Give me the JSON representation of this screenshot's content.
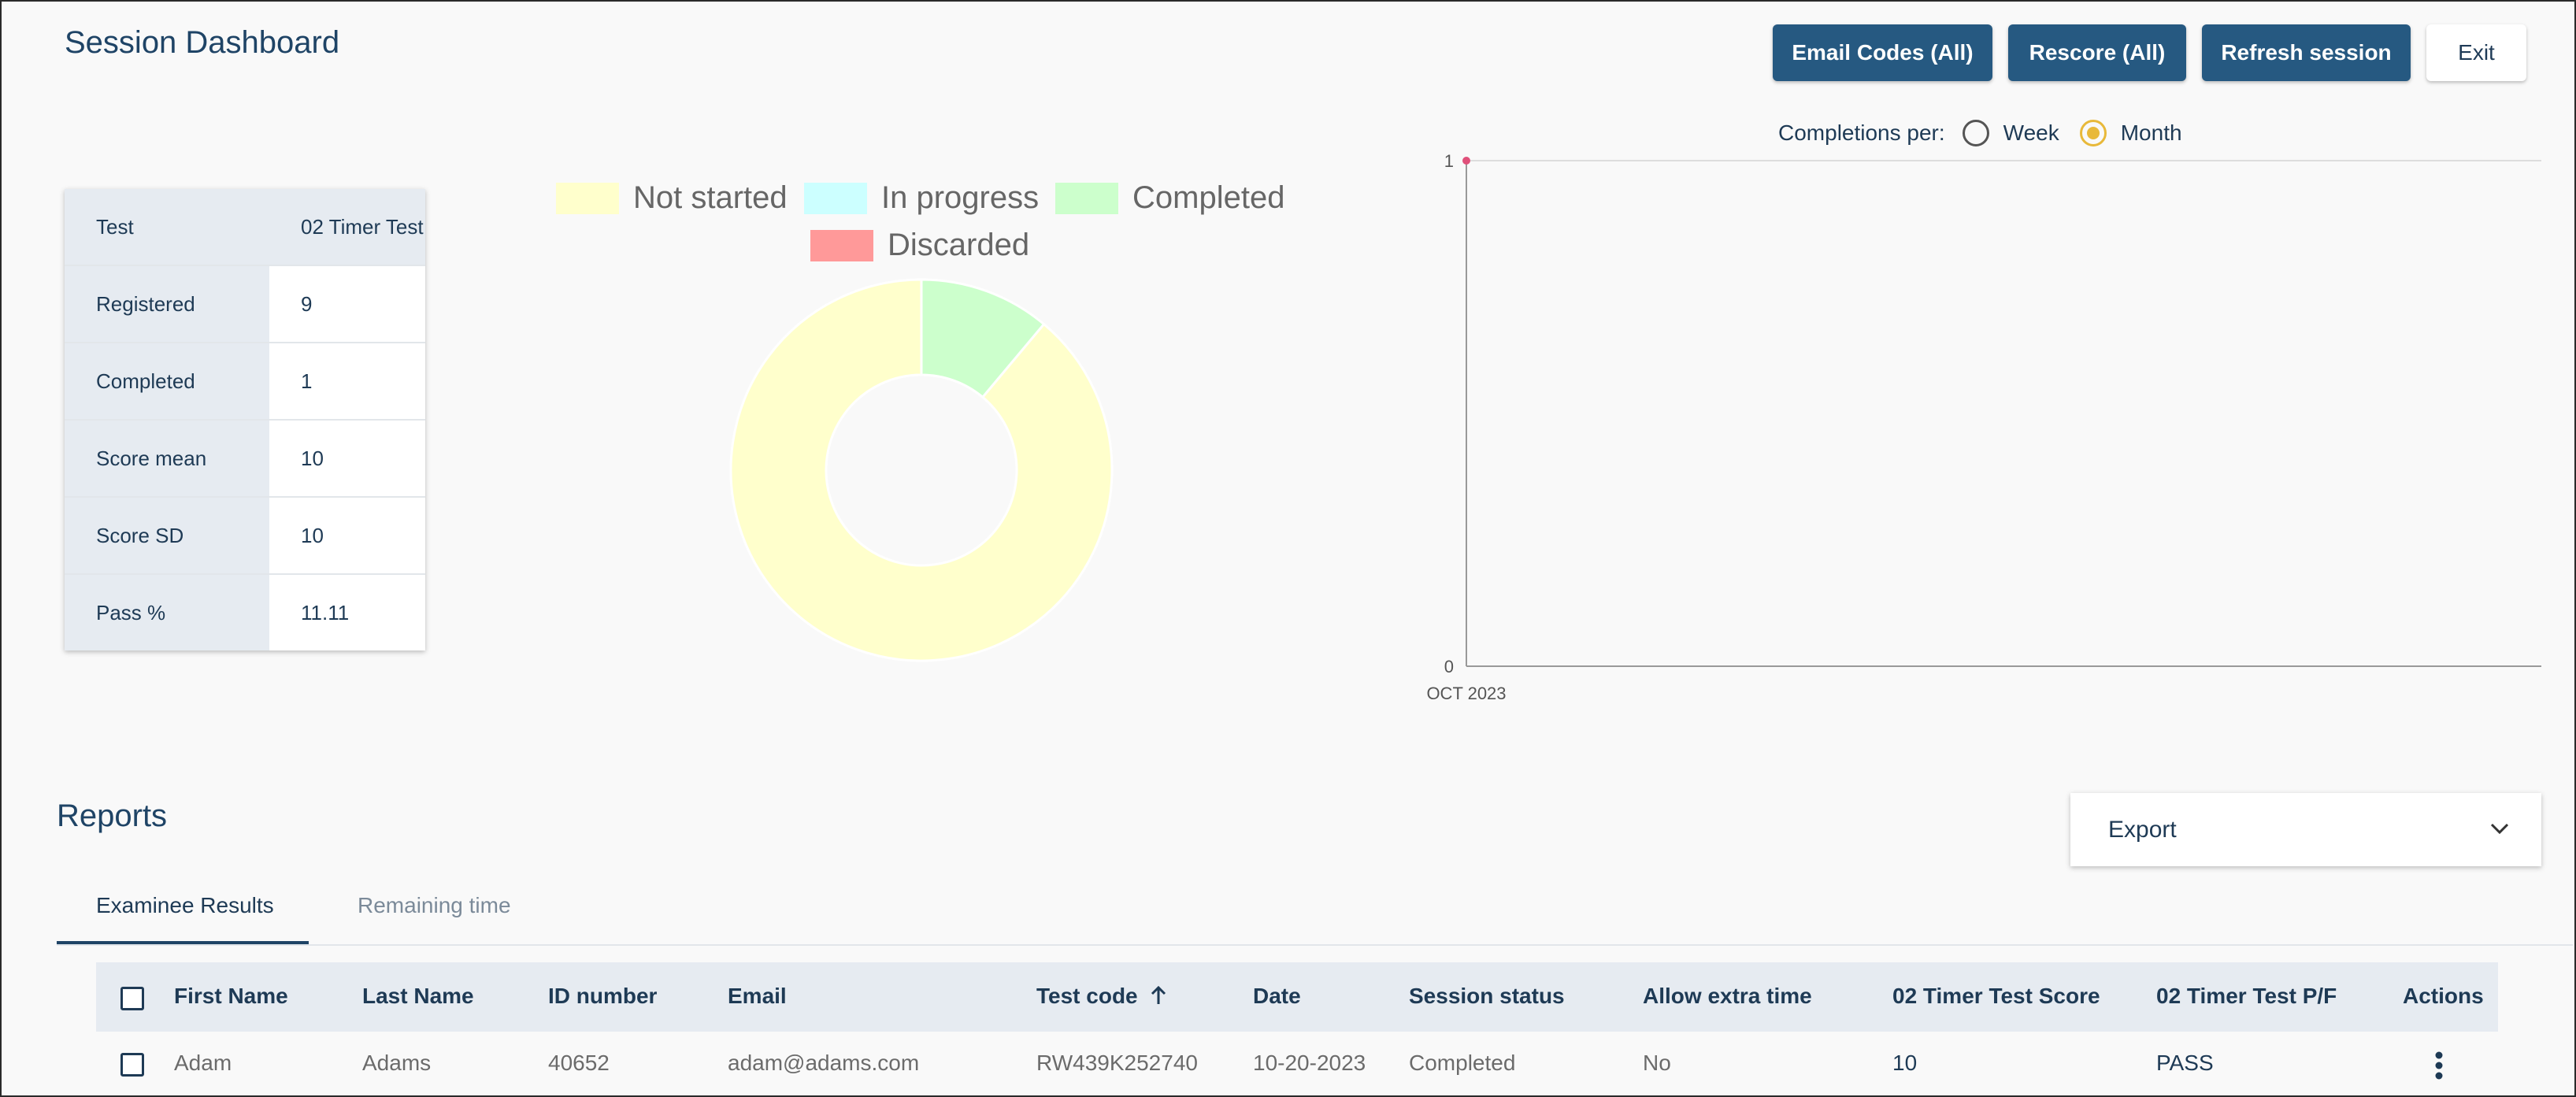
{
  "header": {
    "title": "Session Dashboard",
    "buttons": {
      "email_codes": "Email Codes (All)",
      "rescore": "Rescore (All)",
      "refresh": "Refresh session",
      "exit": "Exit"
    }
  },
  "stats": [
    {
      "label": "Test",
      "value": "02 Timer Test"
    },
    {
      "label": "Registered",
      "value": "9"
    },
    {
      "label": "Completed",
      "value": "1"
    },
    {
      "label": "Score mean",
      "value": "10"
    },
    {
      "label": "Score SD",
      "value": "10"
    },
    {
      "label": "Pass %",
      "value": "11.11"
    }
  ],
  "donut": {
    "legend": [
      {
        "name": "Not started",
        "color": "#ffffcc"
      },
      {
        "name": "In progress",
        "color": "#ccffff"
      },
      {
        "name": "Completed",
        "color": "#ccffcc"
      },
      {
        "name": "Discarded",
        "color": "#ff9999"
      }
    ]
  },
  "completions": {
    "label": "Completions per:",
    "options": [
      {
        "label": "Week",
        "selected": false
      },
      {
        "label": "Month",
        "selected": true
      }
    ]
  },
  "chart_data": [
    {
      "type": "pie",
      "categories": [
        "Not started",
        "In progress",
        "Completed",
        "Discarded"
      ],
      "values": [
        8,
        0,
        1,
        0
      ],
      "colors": [
        "#ffffcc",
        "#ccffff",
        "#ccffcc",
        "#ff9999"
      ],
      "legend": "top"
    },
    {
      "type": "line",
      "x": [
        "OCT 2023"
      ],
      "series": [
        {
          "values": [
            1
          ]
        }
      ],
      "ylim": [
        0,
        1
      ],
      "yticks": [
        "0",
        "1"
      ],
      "xticks": [
        "OCT 2023"
      ],
      "grid": true
    }
  ],
  "reports": {
    "title": "Reports",
    "export_label": "Export",
    "tabs": [
      {
        "label": "Examinee Results",
        "active": true
      },
      {
        "label": "Remaining time",
        "active": false
      }
    ],
    "columns": [
      "First Name",
      "Last Name",
      "ID number",
      "Email",
      "Test code",
      "Date",
      "Session status",
      "Allow extra time",
      "02 Timer Test Score",
      "02 Timer Test P/F",
      "Actions"
    ],
    "rows": [
      {
        "first": "Adam",
        "last": "Adams",
        "id": "40652",
        "email": "adam@adams.com",
        "code": "RW439K252740",
        "date": "10-20-2023",
        "status": "Completed",
        "extra": "No",
        "score": "10",
        "pf": "PASS"
      }
    ]
  }
}
